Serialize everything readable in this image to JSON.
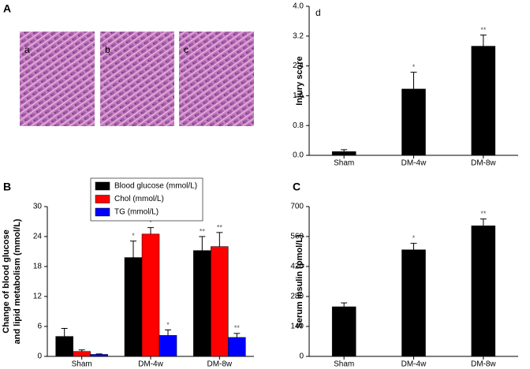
{
  "figure_panel": {
    "label": "A",
    "images": [
      "a",
      "b",
      "c"
    ]
  },
  "chart_data": [
    {
      "type": "bar",
      "panel_label": "B",
      "ylabel": [
        "Change of blood glucose",
        "and lipid metabolism (mmol/L)"
      ],
      "categories": [
        "Sham",
        "DM-4w",
        "DM-8w"
      ],
      "series": [
        {
          "name": "Blood glucose (mmol/L)",
          "color": "#000000",
          "values": [
            4.0,
            19.8,
            21.2
          ],
          "errors": [
            1.6,
            3.3,
            2.8
          ],
          "annotations": [
            null,
            "*",
            "**"
          ]
        },
        {
          "name": "Chol (mmol/L)",
          "color": "#ff0000",
          "values": [
            1.0,
            24.5,
            22.0
          ],
          "errors": [
            0.3,
            1.3,
            2.8
          ],
          "annotations": [
            null,
            "*",
            "**"
          ]
        },
        {
          "name": "TG (mmol/L)",
          "color": "#0000ff",
          "values": [
            0.4,
            4.2,
            3.8
          ],
          "errors": [
            0.1,
            1.1,
            0.8
          ],
          "annotations": [
            null,
            "*",
            "**"
          ]
        }
      ],
      "ylim": [
        0,
        30
      ],
      "yticks": [
        0,
        6,
        12,
        18,
        24,
        30
      ],
      "legend": "top-left"
    },
    {
      "type": "bar",
      "panel_label": "C",
      "ylabel": "Serum insulin (pmol/L)",
      "categories": [
        "Sham",
        "DM-4w",
        "DM-8w"
      ],
      "values": [
        232,
        498,
        610
      ],
      "errors": [
        18,
        30,
        32
      ],
      "annotations": [
        null,
        "*",
        "**"
      ],
      "color": "#000000",
      "ylim": [
        0,
        700
      ],
      "yticks": [
        0,
        140,
        280,
        420,
        560,
        700
      ]
    },
    {
      "type": "bar",
      "title": "d",
      "ylabel": "Injury score",
      "categories": [
        "Sham",
        "DM-4w",
        "DM-8w"
      ],
      "values": [
        0.1,
        1.78,
        2.93
      ],
      "errors": [
        0.05,
        0.45,
        0.3
      ],
      "annotations": [
        null,
        "*",
        "**"
      ],
      "color": "#000000",
      "ylim": [
        0,
        4
      ],
      "yticks": [
        {
          "value": 0,
          "label": "0.0"
        },
        0.8,
        1.6,
        2.4,
        3.2,
        {
          "value": 4,
          "label": "4.0"
        }
      ]
    }
  ]
}
